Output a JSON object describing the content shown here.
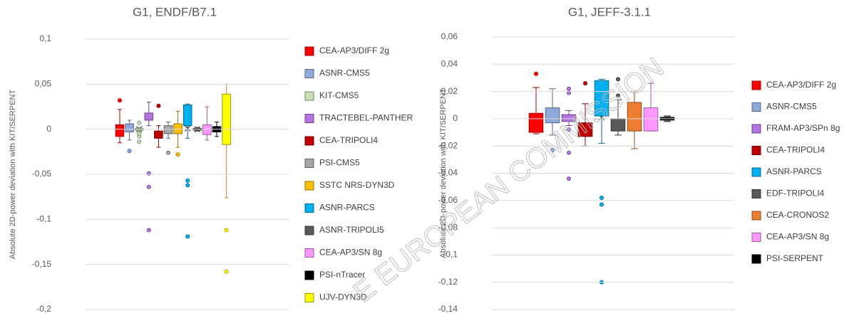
{
  "watermark": "E EUROPEAN COMMISSION",
  "chart_data": [
    {
      "type": "box",
      "title": "G1, ENDF/B7.1",
      "y_label": "Absolute 2D-power deviation with KIT/SERPENT",
      "ylim": [
        -0.2,
        0.1
      ],
      "grid": true,
      "yticks": [
        {
          "value": 0.1,
          "label": "0,1"
        },
        {
          "value": 0.05,
          "label": "0,05"
        },
        0,
        {
          "value": -0.05,
          "label": "-0,05"
        },
        {
          "value": -0.1,
          "label": "-0,1"
        },
        {
          "value": -0.15,
          "label": "-0,15"
        },
        {
          "value": -0.2,
          "label": "-0,2"
        }
      ],
      "series": [
        {
          "name": "CEA-AP3/DIFF 2g",
          "color": "#ff0000",
          "min": -0.015,
          "q1": -0.008,
          "median": 0,
          "q3": 0.005,
          "max": 0.022,
          "mean": -0.002,
          "outliers": [
            0.032
          ]
        },
        {
          "name": "ASNR-CMS5",
          "color": "#8eaadb",
          "min": -0.012,
          "q1": -0.003,
          "median": 0.002,
          "q3": 0.006,
          "max": 0.01,
          "mean": 0.002,
          "outliers": [
            -0.024
          ]
        },
        {
          "name": "KIT-CMS5",
          "color": "#c6e0b4",
          "min": -0.002,
          "q1": -0.001,
          "median": 0,
          "q3": 0.001,
          "max": 0.002,
          "mean": 0,
          "outliers": [
            0.007,
            -0.005,
            -0.008,
            -0.014
          ]
        },
        {
          "name": "TRACTEBEL-PANTHER",
          "color": "#b473e0",
          "min": 0.004,
          "q1": 0.01,
          "median": 0.014,
          "q3": 0.018,
          "max": 0.03,
          "mean": 0.014,
          "outliers": [
            -0.049,
            -0.064,
            -0.112
          ]
        },
        {
          "name": "CEA-TRIPOLI4",
          "color": "#c00000",
          "min": -0.02,
          "q1": -0.01,
          "median": -0.006,
          "q3": -0.002,
          "max": 0.004,
          "mean": -0.006,
          "outliers": [
            0.026
          ]
        },
        {
          "name": "PSI-CMS5",
          "color": "#a6a6a6",
          "min": -0.01,
          "q1": -0.005,
          "median": 0,
          "q3": 0.004,
          "max": 0.008,
          "mean": -0.002,
          "outliers": [
            -0.026
          ]
        },
        {
          "name": "SSTC NRS-DYN3D",
          "color": "#ffc000",
          "min": -0.02,
          "q1": -0.005,
          "median": 0,
          "q3": 0.006,
          "max": 0.02,
          "mean": 0.001,
          "outliers": [
            -0.028
          ]
        },
        {
          "name": "ASNR-PARCS",
          "color": "#00b0f0",
          "min": -0.01,
          "q1": 0.004,
          "median": 0.015,
          "q3": 0.027,
          "max": 0.028,
          "mean": 0.001,
          "outliers": [
            -0.057,
            -0.062,
            -0.119
          ]
        },
        {
          "name": "ASNR-TRIPOLI5",
          "color": "#595959",
          "min": -0.002,
          "q1": -0.001,
          "median": 0,
          "q3": 0.001,
          "max": 0.002,
          "mean": 0,
          "outliers": []
        },
        {
          "name": "CEA-AP3/SN 8g",
          "color": "#ff99ff",
          "min": -0.012,
          "q1": -0.006,
          "median": 0,
          "q3": 0.005,
          "max": 0.025,
          "mean": 0,
          "outliers": []
        },
        {
          "name": "PSI-nTracer",
          "color": "#000000",
          "min": -0.008,
          "q1": -0.003,
          "median": 0,
          "q3": 0.003,
          "max": 0.008,
          "mean": 0,
          "outliers": []
        },
        {
          "name": "UJV-DYN3D",
          "color": "#ffff00",
          "min": -0.076,
          "q1": -0.017,
          "median": 0.024,
          "q3": 0.039,
          "max": 0.05,
          "mean": 0,
          "outliers": [
            -0.112,
            -0.158
          ]
        }
      ]
    },
    {
      "type": "box",
      "title": "G1, JEFF-3.1.1",
      "y_label": "Absolute 2D-power deviation with KIT/SERPENT",
      "ylim": [
        -0.14,
        0.06
      ],
      "grid": true,
      "yticks": [
        {
          "value": 0.06,
          "label": "0,06"
        },
        {
          "value": 0.04,
          "label": "0,04"
        },
        {
          "value": 0.02,
          "label": "0,02"
        },
        0,
        {
          "value": -0.02,
          "label": "-0,02"
        },
        {
          "value": -0.04,
          "label": "-0,04"
        },
        {
          "value": -0.06,
          "label": "-0,06"
        },
        {
          "value": -0.08,
          "label": "-0,08"
        },
        {
          "value": -0.1,
          "label": "-0,1"
        },
        {
          "value": -0.12,
          "label": "-0,12"
        },
        {
          "value": -0.14,
          "label": "-0,14"
        }
      ],
      "series": [
        {
          "name": "CEA-AP3/DIFF 2g",
          "color": "#ff0000",
          "min": -0.011,
          "q1": -0.01,
          "median": 0,
          "q3": 0.004,
          "max": 0.023,
          "mean": -0.002,
          "outliers": [
            0.033
          ]
        },
        {
          "name": "ASNR-CMS5",
          "color": "#8eaadb",
          "min": -0.012,
          "q1": -0.003,
          "median": 0,
          "q3": 0.008,
          "max": 0.022,
          "mean": 0.001,
          "outliers": [
            -0.023
          ]
        },
        {
          "name": "FRAM-AP3/SPn 8g",
          "color": "#b473e0",
          "min": -0.005,
          "q1": -0.002,
          "median": 0.001,
          "q3": 0.003,
          "max": 0.006,
          "mean": 0,
          "outliers": [
            0.022,
            0.019,
            -0.008,
            -0.025,
            -0.044
          ]
        },
        {
          "name": "CEA-TRIPOLI4",
          "color": "#c00000",
          "min": -0.02,
          "q1": -0.013,
          "median": -0.007,
          "q3": -0.003,
          "max": 0.011,
          "mean": -0.008,
          "outliers": [
            0.026
          ]
        },
        {
          "name": "ASNR-PARCS",
          "color": "#00b0f0",
          "min": -0.018,
          "q1": 0.002,
          "median": 0.012,
          "q3": 0.028,
          "max": 0.029,
          "mean": 0.001,
          "outliers": [
            -0.058,
            -0.063,
            -0.12
          ]
        },
        {
          "name": "EDF-TRIPOLI4",
          "color": "#595959",
          "min": -0.012,
          "q1": -0.009,
          "median": -0.004,
          "q3": 0,
          "max": 0.014,
          "mean": -0.003,
          "outliers": [
            0.029,
            0.017
          ]
        },
        {
          "name": "CEA-CRONOS2",
          "color": "#ed7d31",
          "min": -0.022,
          "q1": -0.009,
          "median": -0.001,
          "q3": 0.012,
          "max": 0.02,
          "mean": 0,
          "outliers": []
        },
        {
          "name": "CEA-AP3/SN 8g",
          "color": "#ff99ff",
          "min": -0.009,
          "q1": -0.009,
          "median": 0,
          "q3": 0.008,
          "max": 0.026,
          "mean": 0,
          "outliers": []
        },
        {
          "name": "PSI-SERPENT",
          "color": "#000000",
          "min": -0.002,
          "q1": -0.001,
          "median": 0,
          "q3": 0.001,
          "max": 0.002,
          "mean": 0,
          "outliers": []
        }
      ]
    }
  ]
}
